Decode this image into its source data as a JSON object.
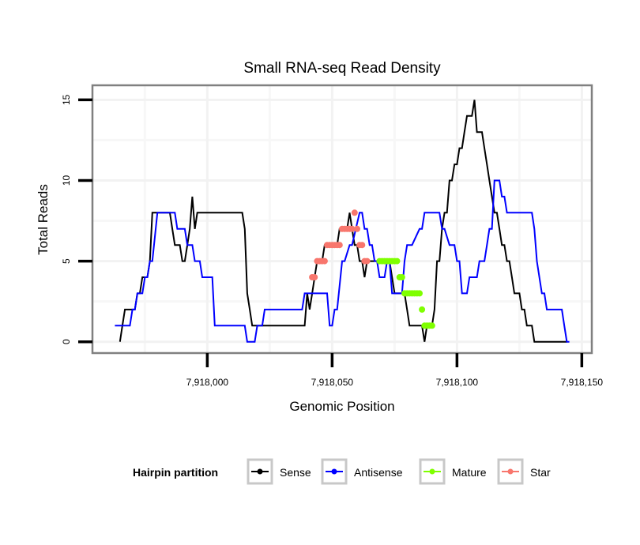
{
  "chart_data": {
    "type": "line",
    "title": "Small RNA-seq Read Density",
    "xlabel": "Genomic Position",
    "ylabel": "Total Reads",
    "xlim": [
      7917954,
      7918154
    ],
    "ylim": [
      -0.7,
      15.9
    ],
    "x_ticks": [
      7918000,
      7918050,
      7918100,
      7918150
    ],
    "x_tick_labels": [
      "7,918,000",
      "7,918,050",
      "7,918,100",
      "7,918,150"
    ],
    "y_ticks": [
      0,
      5,
      10,
      15
    ],
    "y_tick_labels": [
      "0",
      "5",
      "10",
      "15"
    ],
    "grid": true,
    "legend": {
      "title": "Hairpin partition",
      "placement": "bottom",
      "entries": [
        {
          "name": "Sense",
          "color": "#000000"
        },
        {
          "name": "Antisense",
          "color": "#0000ff"
        },
        {
          "name": "Mature",
          "color": "#7fff00"
        },
        {
          "name": "Star",
          "color": "#f8766d"
        }
      ]
    },
    "series": [
      {
        "name": "Sense",
        "color": "#000000",
        "style": "line",
        "x": [
          7917965,
          7917966,
          7917967,
          7917971,
          7917972,
          7917973,
          7917974,
          7917976,
          7917977,
          7917978,
          7917979,
          7917985,
          7917986,
          7917987,
          7917989,
          7917990,
          7917991,
          7917992,
          7917993,
          7917994,
          7917995,
          7917996,
          7917997,
          7918014,
          7918015,
          7918016,
          7918017,
          7918018,
          7918039,
          7918040,
          7918041,
          7918042,
          7918043,
          7918044,
          7918046,
          7918047,
          7918049,
          7918050,
          7918052,
          7918053,
          7918056,
          7918057,
          7918058,
          7918059,
          7918060,
          7918061,
          7918062,
          7918063,
          7918064,
          7918065,
          7918066,
          7918073,
          7918074,
          7918075,
          7918076,
          7918079,
          7918080,
          7918081,
          7918086,
          7918087,
          7918088,
          7918090,
          7918091,
          7918092,
          7918093,
          7918094,
          7918095,
          7918096,
          7918097,
          7918098,
          7918099,
          7918100,
          7918101,
          7918102,
          7918103,
          7918104,
          7918105,
          7918106,
          7918107,
          7918108,
          7918110,
          7918111,
          7918112,
          7918113,
          7918114,
          7918115,
          7918116,
          7918117,
          7918118,
          7918119,
          7918120,
          7918121,
          7918122,
          7918123,
          7918124,
          7918125,
          7918126,
          7918127,
          7918128,
          7918130,
          7918131,
          7918132,
          7918135,
          7918136,
          7918137,
          7918138,
          7918144
        ],
        "y": [
          0,
          1,
          2,
          2,
          3,
          3,
          4,
          4,
          5,
          8,
          8,
          8,
          7,
          6,
          6,
          5,
          5,
          6,
          7,
          9,
          7,
          8,
          8,
          8,
          7,
          3,
          2,
          1,
          1,
          3,
          2,
          3,
          4,
          5,
          5,
          6,
          6,
          6,
          6,
          7,
          7,
          8,
          7,
          6,
          6,
          5,
          5,
          4,
          5,
          5,
          5,
          5,
          4,
          3,
          3,
          3,
          2,
          1,
          1,
          0,
          1,
          1,
          2,
          5,
          5,
          7,
          8,
          8,
          10,
          10,
          11,
          11,
          12,
          12,
          13,
          14,
          14,
          14,
          15,
          13,
          13,
          12,
          11,
          10,
          9,
          8,
          8,
          7,
          6,
          6,
          5,
          5,
          4,
          3,
          3,
          3,
          2,
          2,
          1,
          1,
          0,
          0,
          0,
          0,
          0,
          0,
          0
        ]
      },
      {
        "name": "Antisense",
        "color": "#0000ff",
        "style": "line",
        "x": [
          7917963,
          7917964,
          7917965,
          7917969,
          7917970,
          7917971,
          7917972,
          7917974,
          7917975,
          7917976,
          7917977,
          7917978,
          7917980,
          7917981,
          7917982,
          7917987,
          7917988,
          7917991,
          7917992,
          7917994,
          7917995,
          7917997,
          7917998,
          7918002,
          7918003,
          7918015,
          7918016,
          7918019,
          7918020,
          7918022,
          7918023,
          7918038,
          7918039,
          7918048,
          7918049,
          7918050,
          7918051,
          7918052,
          7918054,
          7918055,
          7918057,
          7918058,
          7918061,
          7918062,
          7918063,
          7918064,
          7918065,
          7918066,
          7918067,
          7918068,
          7918069,
          7918071,
          7918072,
          7918073,
          7918074,
          7918075,
          7918076,
          7918078,
          7918079,
          7918080,
          7918081,
          7918082,
          7918085,
          7918086,
          7918087,
          7918088,
          7918089,
          7918090,
          7918091,
          7918093,
          7918094,
          7918095,
          7918097,
          7918098,
          7918099,
          7918100,
          7918101,
          7918102,
          7918103,
          7918104,
          7918105,
          7918106,
          7918107,
          7918108,
          7918109,
          7918111,
          7918112,
          7918113,
          7918114,
          7918115,
          7918116,
          7918117,
          7918118,
          7918119,
          7918120,
          7918121,
          7918122,
          7918123,
          7918124,
          7918125,
          7918126,
          7918127,
          7918128,
          7918129,
          7918130,
          7918131,
          7918132,
          7918134,
          7918135,
          7918136,
          7918137,
          7918138,
          7918140,
          7918141,
          7918142,
          7918143,
          7918144,
          7918145
        ],
        "y": [
          1,
          1,
          1,
          1,
          2,
          2,
          3,
          3,
          4,
          4,
          5,
          5,
          8,
          8,
          8,
          8,
          7,
          7,
          6,
          6,
          5,
          5,
          4,
          4,
          1,
          1,
          0,
          0,
          1,
          1,
          2,
          2,
          3,
          3,
          1,
          1,
          2,
          2,
          5,
          5,
          6,
          6,
          8,
          8,
          7,
          7,
          6,
          6,
          5,
          5,
          4,
          4,
          5,
          5,
          3,
          3,
          3,
          3,
          5,
          6,
          6,
          6,
          7,
          7,
          8,
          8,
          8,
          8,
          8,
          8,
          7,
          7,
          6,
          6,
          6,
          5,
          5,
          3,
          3,
          3,
          4,
          4,
          4,
          4,
          5,
          5,
          6,
          7,
          7,
          10,
          10,
          10,
          9,
          9,
          8,
          8,
          8,
          8,
          8,
          8,
          8,
          8,
          8,
          8,
          8,
          7,
          5,
          3,
          3,
          2,
          2,
          2,
          2,
          2,
          2,
          1,
          0,
          0
        ]
      },
      {
        "name": "Star",
        "color": "#f8766d",
        "style": "points",
        "x": [
          7918042,
          7918043,
          7918044,
          7918045,
          7918046,
          7918047,
          7918048,
          7918049,
          7918050,
          7918051,
          7918052,
          7918053,
          7918054,
          7918055,
          7918056,
          7918057,
          7918058,
          7918059,
          7918060,
          7918061,
          7918062,
          7918063,
          7918064
        ],
        "y": [
          4,
          4,
          5,
          5,
          5,
          5,
          6,
          6,
          6,
          6,
          6,
          6,
          7,
          7,
          7,
          7,
          7,
          8,
          7,
          6,
          6,
          5,
          5
        ]
      },
      {
        "name": "Mature",
        "color": "#7fff00",
        "style": "points",
        "x": [
          7918069,
          7918070,
          7918071,
          7918072,
          7918073,
          7918074,
          7918075,
          7918076,
          7918077,
          7918078,
          7918079,
          7918080,
          7918081,
          7918082,
          7918083,
          7918084,
          7918085,
          7918086,
          7918087,
          7918088,
          7918089,
          7918090
        ],
        "y": [
          5,
          5,
          5,
          5,
          5,
          5,
          5,
          5,
          4,
          4,
          3,
          3,
          3,
          3,
          3,
          3,
          3,
          2,
          1,
          1,
          1,
          1
        ]
      }
    ]
  }
}
